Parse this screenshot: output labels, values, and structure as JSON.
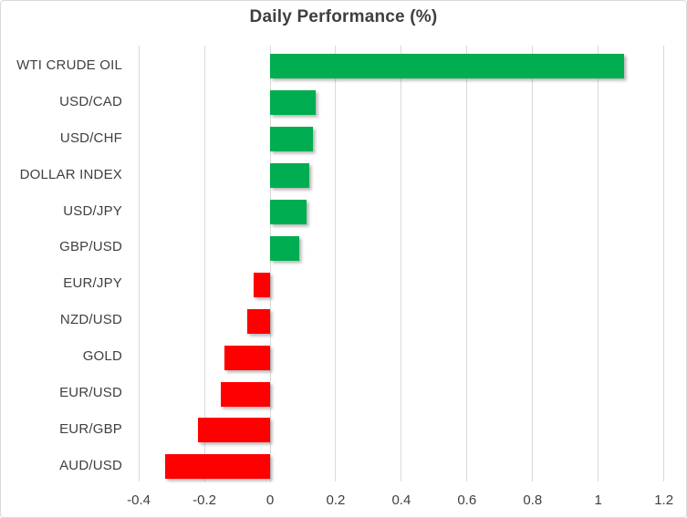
{
  "chart_data": {
    "type": "bar",
    "orientation": "horizontal",
    "title": "Daily Performance (%)",
    "categories": [
      "WTI CRUDE OIL",
      "USD/CAD",
      "USD/CHF",
      "DOLLAR INDEX",
      "USD/JPY",
      "GBP/USD",
      "EUR/JPY",
      "NZD/USD",
      "GOLD",
      "EUR/USD",
      "EUR/GBP",
      "AUD/USD"
    ],
    "values": [
      1.08,
      0.14,
      0.13,
      0.12,
      0.11,
      0.09,
      -0.05,
      -0.07,
      -0.14,
      -0.15,
      -0.22,
      -0.32
    ],
    "xlim": [
      -0.4,
      1.2
    ],
    "xticks": [
      -0.4,
      -0.2,
      0,
      0.2,
      0.4,
      0.6,
      0.8,
      1,
      1.2
    ],
    "xtick_labels": [
      "-0.4",
      "-0.2",
      "0",
      "0.2",
      "0.4",
      "0.6",
      "0.8",
      "1",
      "1.2"
    ],
    "grid": "vertical-only",
    "legend": "none",
    "xlabel": "",
    "ylabel": ""
  },
  "colors": {
    "positive_bar": "#00AD50",
    "negative_bar": "#FF0000",
    "gridline": "#D9D9D9",
    "text": "#404040",
    "title_text": "#3F3F3F",
    "background": "#FFFFFF",
    "border": "#D9D9D9"
  }
}
